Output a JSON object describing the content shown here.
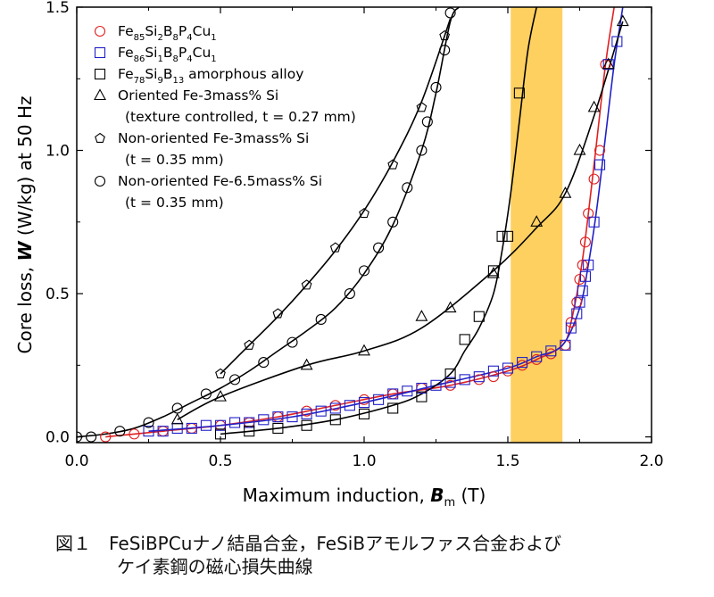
{
  "caption": {
    "line1": "図１　FeSiBPCuナノ結晶合金，FeSiBアモルファス合金および",
    "line2": "ケイ素鋼の磁心損失曲線"
  },
  "chart_data": {
    "type": "scatter",
    "xlabel_prefix": "Maximum induction, ",
    "xlabel_symbol": "B",
    "xlabel_sub": "m",
    "xlabel_unit": " (T)",
    "ylabel_prefix": "Core loss, ",
    "ylabel_symbol": "W",
    "ylabel_unit": " (W/kg) at 50 Hz",
    "xlim": [
      0.0,
      2.0
    ],
    "ylim": [
      -0.02,
      1.5
    ],
    "xticks": [
      "0.0",
      "0.5",
      "1.0",
      "1.5",
      "2.0"
    ],
    "yticks": [
      "0.0",
      "0.5",
      "1.0",
      "1.5"
    ],
    "highlight_band": {
      "x": [
        1.51,
        1.69
      ],
      "color": "#fdd060"
    },
    "legend_position": "top-left",
    "legend": [
      {
        "marker": "circle",
        "color": "#e02020",
        "base": "Fe",
        "parts": [
          [
            "85",
            "Si"
          ],
          [
            "2",
            "B"
          ],
          [
            "8",
            "P"
          ],
          [
            "4",
            "Cu"
          ],
          [
            "1",
            ""
          ]
        ]
      },
      {
        "marker": "square",
        "color": "#2020c8",
        "base": "Fe",
        "parts": [
          [
            "86",
            "Si"
          ],
          [
            "1",
            "B"
          ],
          [
            "8",
            "P"
          ],
          [
            "4",
            "Cu"
          ],
          [
            "1",
            ""
          ]
        ]
      },
      {
        "marker": "square",
        "color": "#000000",
        "base": "Fe",
        "parts": [
          [
            "78",
            "Si"
          ],
          [
            "9",
            "B"
          ],
          [
            "13",
            " amorphous alloy"
          ]
        ]
      },
      {
        "marker": "triangle",
        "color": "#000000",
        "text": "Oriented Fe-3mass% Si",
        "sub": "(texture controlled, t = 0.27 mm)"
      },
      {
        "marker": "pentagon",
        "color": "#000000",
        "text": "Non-oriented Fe-3mass% Si",
        "sub": "(t = 0.35 mm)"
      },
      {
        "marker": "circle",
        "color": "#000000",
        "text": "Non-oriented Fe-6.5mass% Si",
        "sub": "(t = 0.35 mm)"
      }
    ],
    "series": [
      {
        "marker": "circle",
        "color": "#e02020",
        "x": [
          0.1,
          0.2,
          0.3,
          0.4,
          0.5,
          0.6,
          0.7,
          0.8,
          0.9,
          1.0,
          1.1,
          1.2,
          1.3,
          1.4,
          1.45,
          1.5,
          1.55,
          1.6,
          1.65,
          1.7,
          1.72,
          1.74,
          1.75,
          1.76,
          1.77,
          1.78,
          1.8,
          1.82,
          1.84
        ],
        "y": [
          0.0,
          0.01,
          0.02,
          0.03,
          0.04,
          0.05,
          0.07,
          0.09,
          0.11,
          0.13,
          0.15,
          0.17,
          0.18,
          0.2,
          0.21,
          0.23,
          0.25,
          0.27,
          0.29,
          0.32,
          0.4,
          0.47,
          0.55,
          0.6,
          0.68,
          0.78,
          0.9,
          1.0,
          1.3
        ],
        "line_x": [
          0.1,
          0.3,
          0.5,
          0.7,
          0.9,
          1.1,
          1.3,
          1.5,
          1.6,
          1.69,
          1.72,
          1.76,
          1.8,
          1.84,
          1.87
        ],
        "line_y": [
          0.0,
          0.02,
          0.04,
          0.07,
          0.11,
          0.15,
          0.18,
          0.23,
          0.27,
          0.32,
          0.4,
          0.62,
          0.95,
          1.3,
          1.5
        ]
      },
      {
        "marker": "square",
        "color": "#2020c8",
        "x": [
          0.25,
          0.3,
          0.35,
          0.4,
          0.45,
          0.5,
          0.55,
          0.6,
          0.65,
          0.7,
          0.75,
          0.8,
          0.85,
          0.9,
          0.95,
          1.0,
          1.05,
          1.1,
          1.15,
          1.2,
          1.25,
          1.3,
          1.35,
          1.4,
          1.45,
          1.5,
          1.55,
          1.6,
          1.65,
          1.7,
          1.72,
          1.74,
          1.75,
          1.76,
          1.77,
          1.78,
          1.8,
          1.82,
          1.85,
          1.88
        ],
        "y": [
          0.02,
          0.02,
          0.03,
          0.03,
          0.04,
          0.04,
          0.05,
          0.05,
          0.06,
          0.07,
          0.07,
          0.08,
          0.09,
          0.1,
          0.11,
          0.12,
          0.13,
          0.15,
          0.16,
          0.17,
          0.18,
          0.19,
          0.2,
          0.21,
          0.23,
          0.24,
          0.26,
          0.28,
          0.3,
          0.32,
          0.38,
          0.43,
          0.47,
          0.51,
          0.56,
          0.6,
          0.75,
          0.95,
          1.3,
          1.38
        ],
        "line_x": [
          0.25,
          0.5,
          0.75,
          1.0,
          1.25,
          1.5,
          1.6,
          1.69,
          1.75,
          1.78,
          1.81,
          1.84,
          1.87,
          1.9
        ],
        "line_y": [
          0.02,
          0.04,
          0.07,
          0.12,
          0.18,
          0.24,
          0.28,
          0.32,
          0.45,
          0.6,
          0.8,
          1.05,
          1.3,
          1.5
        ]
      },
      {
        "marker": "square",
        "color": "#000000",
        "x": [
          0.5,
          0.6,
          0.7,
          0.8,
          0.9,
          1.0,
          1.1,
          1.2,
          1.3,
          1.35,
          1.4,
          1.45,
          1.48,
          1.5,
          1.54
        ],
        "y": [
          0.01,
          0.02,
          0.03,
          0.04,
          0.06,
          0.08,
          0.1,
          0.14,
          0.22,
          0.34,
          0.42,
          0.58,
          0.7,
          0.7,
          1.2
        ],
        "line_x": [
          0.5,
          0.7,
          0.9,
          1.1,
          1.2,
          1.3,
          1.35,
          1.4,
          1.45,
          1.48,
          1.51,
          1.54,
          1.57,
          1.6
        ],
        "line_y": [
          0.01,
          0.03,
          0.06,
          0.11,
          0.15,
          0.22,
          0.3,
          0.38,
          0.5,
          0.65,
          0.85,
          1.1,
          1.35,
          1.5
        ]
      },
      {
        "marker": "triangle",
        "color": "#000000",
        "x": [
          0.35,
          0.5,
          0.8,
          1.0,
          1.2,
          1.3,
          1.45,
          1.6,
          1.7,
          1.75,
          1.8,
          1.85,
          1.9
        ],
        "y": [
          0.06,
          0.14,
          0.25,
          0.3,
          0.42,
          0.45,
          0.57,
          0.75,
          0.85,
          1.0,
          1.15,
          1.3,
          1.45
        ],
        "line_x": [
          0.35,
          0.5,
          0.8,
          1.0,
          1.2,
          1.45,
          1.6,
          1.7,
          1.8,
          1.9
        ],
        "line_y": [
          0.06,
          0.14,
          0.25,
          0.3,
          0.38,
          0.58,
          0.73,
          0.85,
          1.12,
          1.45
        ]
      },
      {
        "marker": "pentagon",
        "color": "#000000",
        "x": [
          0.5,
          0.6,
          0.7,
          0.8,
          0.9,
          1.0,
          1.1,
          1.2,
          1.28
        ],
        "y": [
          0.22,
          0.32,
          0.43,
          0.53,
          0.66,
          0.78,
          0.95,
          1.15,
          1.4
        ],
        "line_x": [
          0.5,
          0.6,
          0.7,
          0.8,
          0.9,
          1.0,
          1.1,
          1.2,
          1.3
        ],
        "line_y": [
          0.22,
          0.32,
          0.42,
          0.53,
          0.65,
          0.79,
          0.96,
          1.17,
          1.46
        ]
      },
      {
        "marker": "circle",
        "color": "#000000",
        "x": [
          0.0,
          0.05,
          0.15,
          0.25,
          0.35,
          0.45,
          0.55,
          0.65,
          0.75,
          0.85,
          0.95,
          1.0,
          1.05,
          1.1,
          1.15,
          1.2,
          1.22,
          1.25,
          1.28,
          1.3
        ],
        "y": [
          0.0,
          0.0,
          0.02,
          0.05,
          0.1,
          0.15,
          0.2,
          0.26,
          0.33,
          0.41,
          0.5,
          0.58,
          0.66,
          0.75,
          0.87,
          1.0,
          1.1,
          1.22,
          1.35,
          1.48
        ],
        "line_x": [
          0.0,
          0.1,
          0.2,
          0.3,
          0.4,
          0.5,
          0.6,
          0.7,
          0.8,
          0.9,
          1.0,
          1.1,
          1.2,
          1.25,
          1.3,
          1.33
        ],
        "line_y": [
          0.0,
          0.01,
          0.03,
          0.07,
          0.12,
          0.17,
          0.23,
          0.3,
          0.37,
          0.45,
          0.57,
          0.74,
          1.0,
          1.2,
          1.45,
          1.5
        ]
      }
    ]
  }
}
